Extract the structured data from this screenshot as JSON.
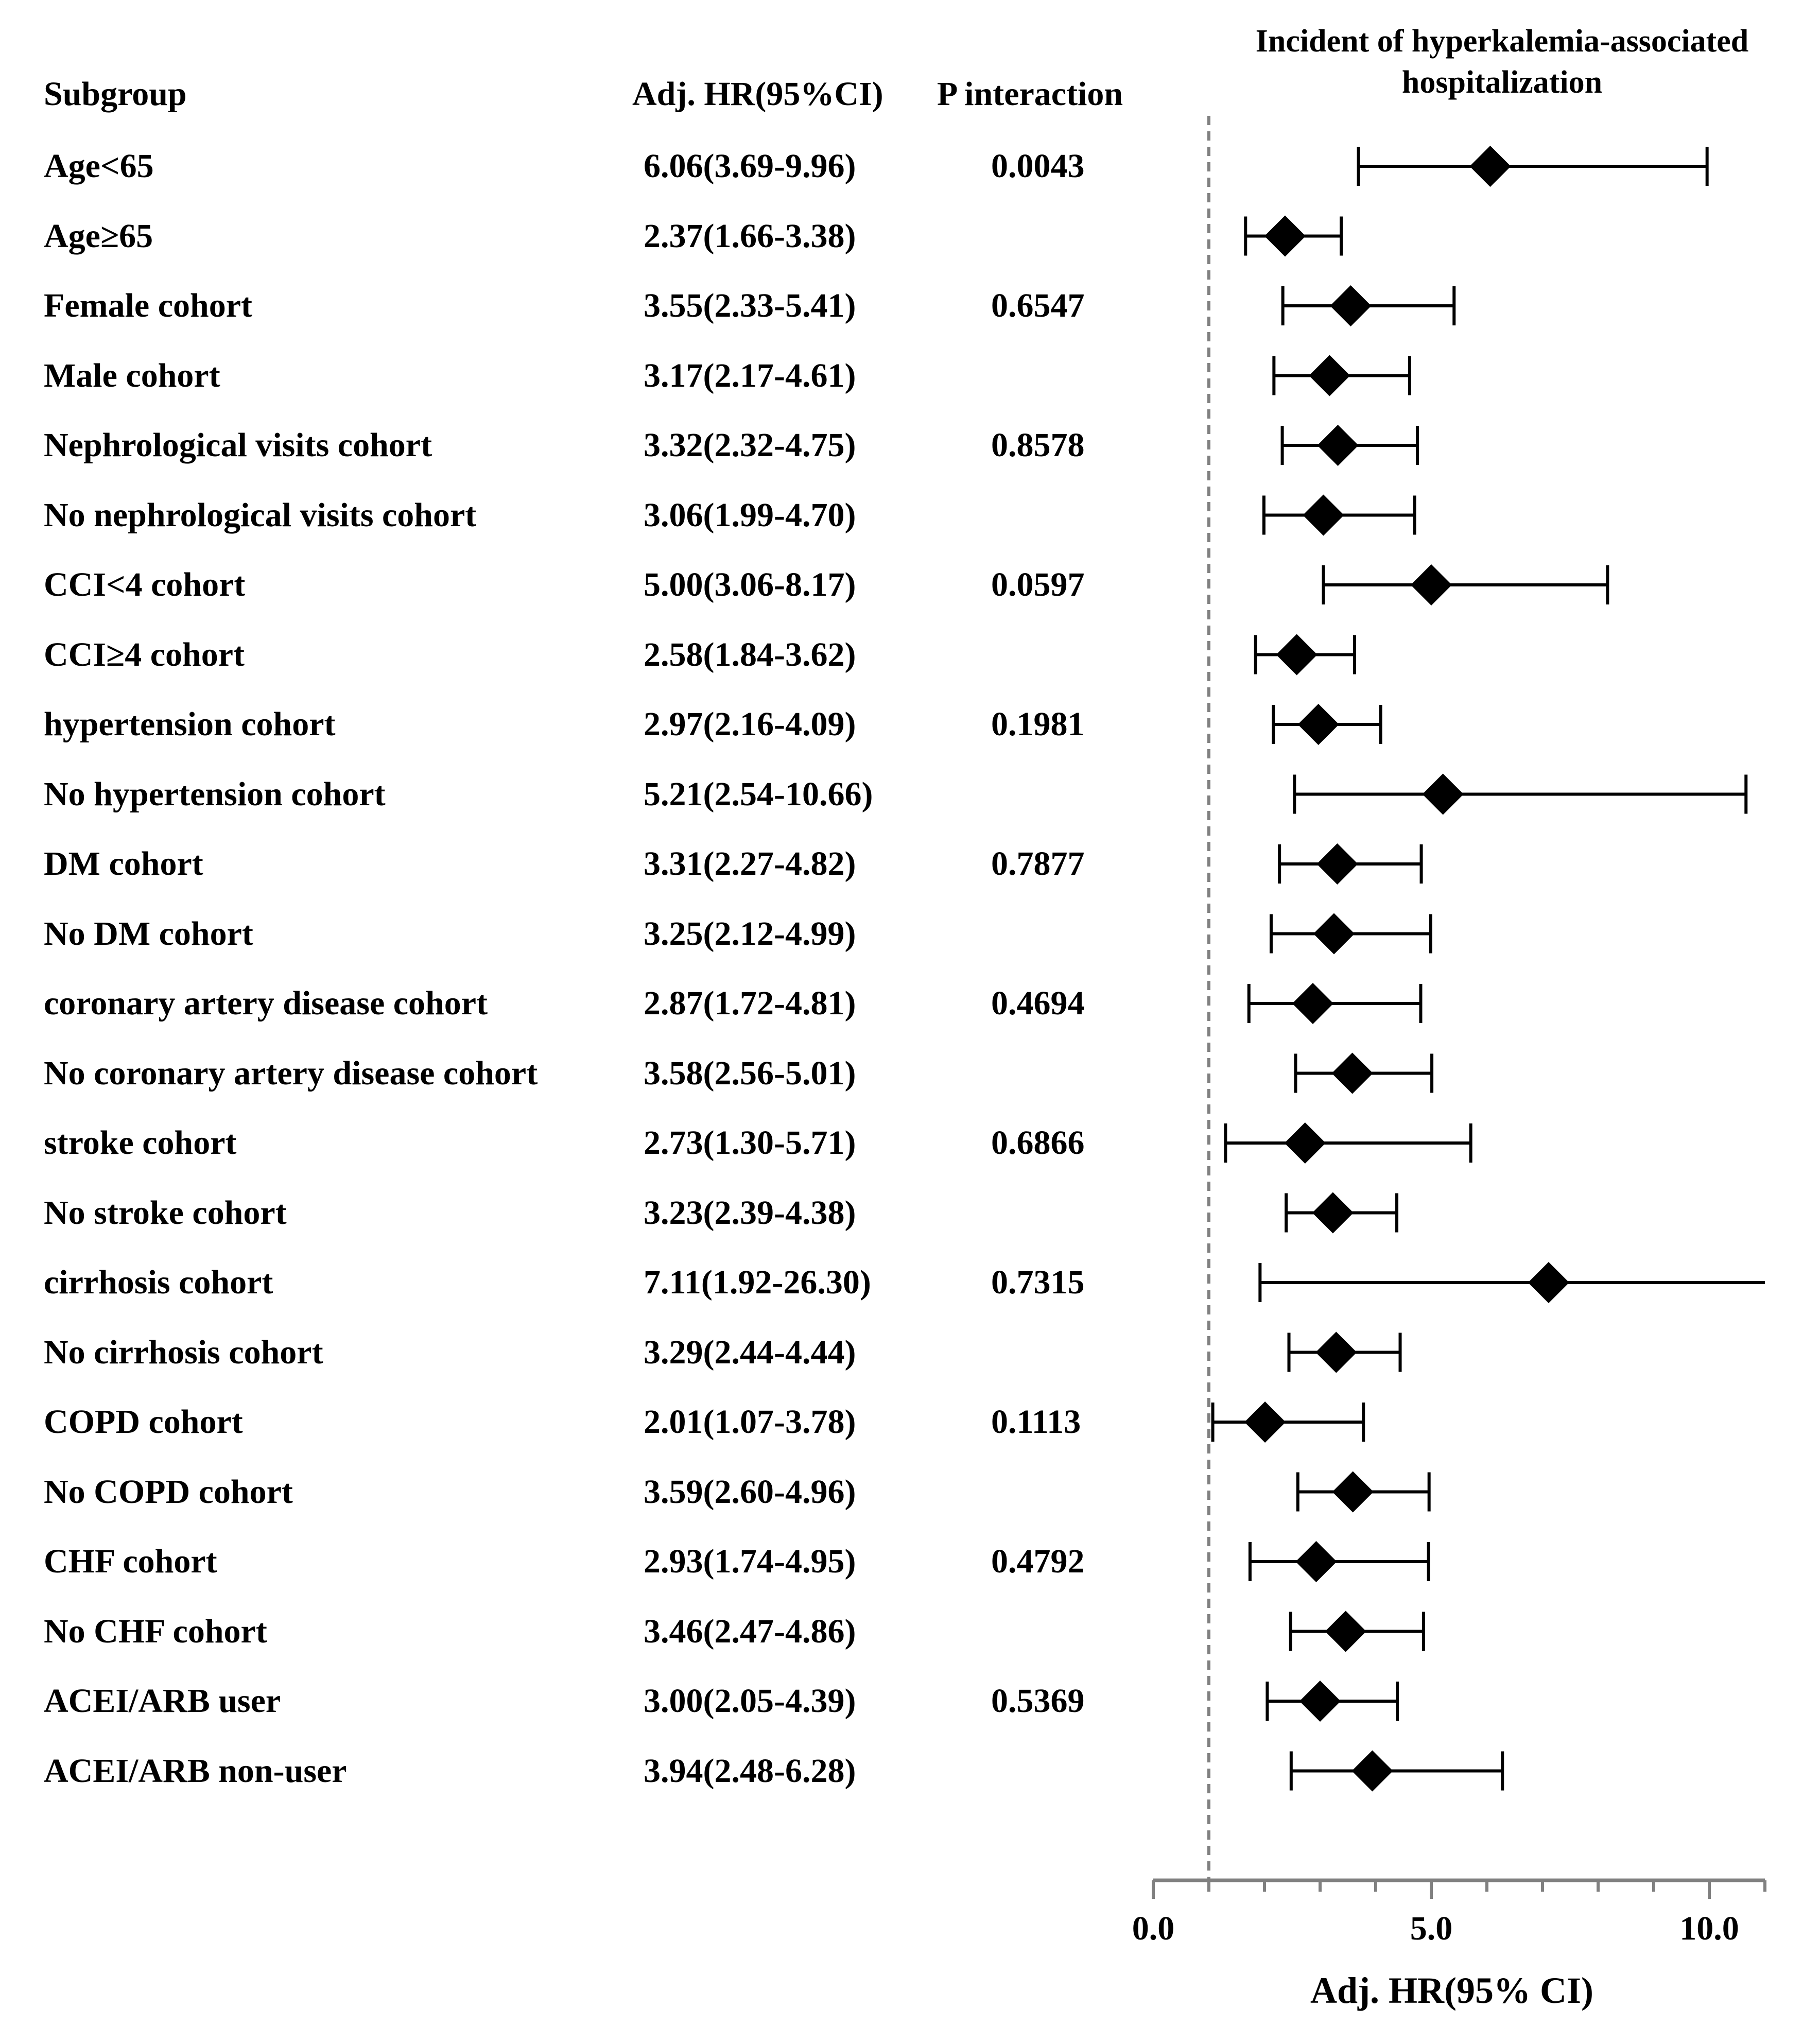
{
  "headers": {
    "subgroup": "Subgroup",
    "hr": "Adj. HR(95%CI)",
    "p": "P interaction"
  },
  "chart_data": {
    "type": "forest",
    "title": "Incident of hyperkalemia-associated hospitalization",
    "xlabel": "Adj. HR(95% CI)",
    "xlim": [
      0,
      11
    ],
    "xticks": [
      0,
      5,
      10
    ],
    "xtick_labels": [
      "0.0",
      "5.0",
      "10.0"
    ],
    "reference_line": 1,
    "colors": {
      "marker": "#000000",
      "reference": "#808080"
    },
    "rows": [
      {
        "label": "Age<65",
        "hr_text": "6.06(3.69-9.96)",
        "p": "0.0043",
        "hr": 6.06,
        "lo": 3.69,
        "hi": 9.96
      },
      {
        "label": "Age≥65",
        "hr_text": "2.37(1.66-3.38)",
        "p": "",
        "hr": 2.37,
        "lo": 1.66,
        "hi": 3.38
      },
      {
        "label": "Female cohort",
        "hr_text": "3.55(2.33-5.41)",
        "p": "0.6547",
        "hr": 3.55,
        "lo": 2.33,
        "hi": 5.41
      },
      {
        "label": "Male cohort",
        "hr_text": "3.17(2.17-4.61)",
        "p": "",
        "hr": 3.17,
        "lo": 2.17,
        "hi": 4.61
      },
      {
        "label": "Nephrological visits cohort",
        "hr_text": "3.32(2.32-4.75)",
        "p": "0.8578",
        "hr": 3.32,
        "lo": 2.32,
        "hi": 4.75
      },
      {
        "label": "No nephrological visits cohort",
        "hr_text": "3.06(1.99-4.70)",
        "p": "",
        "hr": 3.06,
        "lo": 1.99,
        "hi": 4.7
      },
      {
        "label": "CCI<4 cohort",
        "hr_text": "5.00(3.06-8.17)",
        "p": "0.0597",
        "hr": 5.0,
        "lo": 3.06,
        "hi": 8.17
      },
      {
        "label": "CCI≥4 cohort",
        "hr_text": "2.58(1.84-3.62)",
        "p": "",
        "hr": 2.58,
        "lo": 1.84,
        "hi": 3.62
      },
      {
        "label": "hypertension cohort",
        "hr_text": "2.97(2.16-4.09)",
        "p": "0.1981",
        "hr": 2.97,
        "lo": 2.16,
        "hi": 4.09
      },
      {
        "label": "No hypertension cohort",
        "hr_text": "5.21(2.54-10.66)",
        "p": "",
        "hr": 5.21,
        "lo": 2.54,
        "hi": 10.66
      },
      {
        "label": "DM cohort",
        "hr_text": "3.31(2.27-4.82)",
        "p": "0.7877",
        "hr": 3.31,
        "lo": 2.27,
        "hi": 4.82
      },
      {
        "label": "No DM cohort",
        "hr_text": "3.25(2.12-4.99)",
        "p": "",
        "hr": 3.25,
        "lo": 2.12,
        "hi": 4.99
      },
      {
        "label": "coronary artery disease cohort",
        "hr_text": "2.87(1.72-4.81)",
        "p": "0.4694",
        "hr": 2.87,
        "lo": 1.72,
        "hi": 4.81
      },
      {
        "label": "No coronary artery disease cohort",
        "hr_text": "3.58(2.56-5.01)",
        "p": "",
        "hr": 3.58,
        "lo": 2.56,
        "hi": 5.01
      },
      {
        "label": "stroke cohort",
        "hr_text": "2.73(1.30-5.71)",
        "p": "0.6866",
        "hr": 2.73,
        "lo": 1.3,
        "hi": 5.71
      },
      {
        "label": "No stroke cohort",
        "hr_text": "3.23(2.39-4.38)",
        "p": "",
        "hr": 3.23,
        "lo": 2.39,
        "hi": 4.38
      },
      {
        "label": "cirrhosis cohort",
        "hr_text": "7.11(1.92-26.30)",
        "p": "0.7315",
        "hr": 7.11,
        "lo": 1.92,
        "hi": 26.3
      },
      {
        "label": "No cirrhosis cohort",
        "hr_text": "3.29(2.44-4.44)",
        "p": "",
        "hr": 3.29,
        "lo": 2.44,
        "hi": 4.44
      },
      {
        "label": "COPD cohort",
        "hr_text": "2.01(1.07-3.78)",
        "p": "0.1113",
        "hr": 2.01,
        "lo": 1.07,
        "hi": 3.78
      },
      {
        "label": "No COPD cohort",
        "hr_text": "3.59(2.60-4.96)",
        "p": "",
        "hr": 3.59,
        "lo": 2.6,
        "hi": 4.96
      },
      {
        "label": "CHF cohort",
        "hr_text": "2.93(1.74-4.95)",
        "p": "0.4792",
        "hr": 2.93,
        "lo": 1.74,
        "hi": 4.95
      },
      {
        "label": "No CHF cohort",
        "hr_text": "3.46(2.47-4.86)",
        "p": "",
        "hr": 3.46,
        "lo": 2.47,
        "hi": 4.86
      },
      {
        "label": "ACEI/ARB user",
        "hr_text": "3.00(2.05-4.39)",
        "p": "0.5369",
        "hr": 3.0,
        "lo": 2.05,
        "hi": 4.39
      },
      {
        "label": "ACEI/ARB non-user",
        "hr_text": "3.94(2.48-6.28)",
        "p": "",
        "hr": 3.94,
        "lo": 2.48,
        "hi": 6.28
      }
    ]
  }
}
